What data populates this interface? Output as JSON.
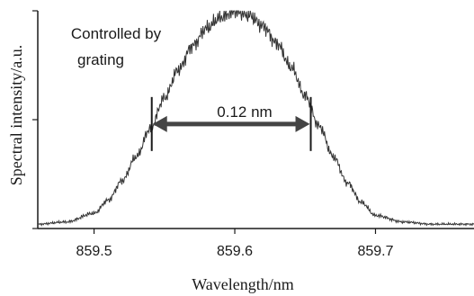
{
  "chart_data": {
    "type": "line",
    "xlabel": "Wavelength/nm",
    "ylabel": "Spectral intensity/a.u.",
    "xlim": [
      859.46,
      859.77
    ],
    "ylim": [
      0,
      1.0
    ],
    "x_ticks": [
      859.5,
      859.6,
      859.7
    ],
    "x_tick_labels": [
      "859.5",
      "859.6",
      "859.7"
    ],
    "y_ticks": [
      0,
      0.5,
      1.0
    ],
    "grid": false,
    "peak_center": 859.598,
    "peak_fwhm": 0.12,
    "series": [
      {
        "x": [
          859.46,
          859.48,
          859.5,
          859.51,
          859.52,
          859.53,
          859.54,
          859.55,
          859.56,
          859.57,
          859.58,
          859.59,
          859.6,
          859.61,
          859.62,
          859.63,
          859.64,
          859.65,
          859.66,
          859.67,
          859.68,
          859.69,
          859.7,
          859.72,
          859.74,
          859.77
        ],
        "y": [
          0.02,
          0.03,
          0.07,
          0.13,
          0.22,
          0.33,
          0.46,
          0.6,
          0.73,
          0.84,
          0.92,
          0.97,
          1.0,
          0.98,
          0.93,
          0.85,
          0.74,
          0.61,
          0.47,
          0.33,
          0.21,
          0.12,
          0.06,
          0.03,
          0.02,
          0.02
        ]
      }
    ],
    "annotations": {
      "controlled_line1": "Controlled by",
      "controlled_line2": "grating",
      "fwhm_label": "0.12 nm",
      "fwhm_left_x": 859.541,
      "fwhm_right_x": 859.654,
      "fwhm_y": 0.48
    },
    "colors": {
      "line": "#333333",
      "axis": "#1a1a1a"
    }
  }
}
